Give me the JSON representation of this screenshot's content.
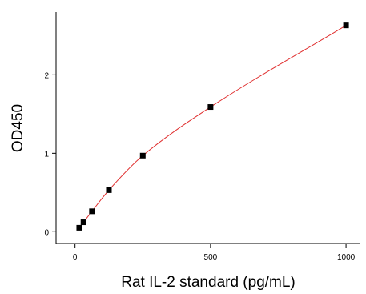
{
  "chart_data": {
    "type": "scatter",
    "title": "",
    "xlabel": "Rat IL-2 standard (pg/mL)",
    "ylabel": "OD450",
    "xlim": [
      -70,
      1050
    ],
    "ylim": [
      -0.15,
      2.8
    ],
    "xticks": [
      0,
      500,
      1000
    ],
    "yticks": [
      0,
      1,
      2
    ],
    "grid": false,
    "legend": "none",
    "colors": {
      "points": "#000000",
      "fit_line": "#e03030",
      "axis": "#000000"
    },
    "series": [
      {
        "x": [
          15.6,
          31.2,
          62.5,
          125,
          250,
          500,
          1000
        ],
        "y": [
          0.05,
          0.12,
          0.26,
          0.53,
          0.97,
          1.59,
          2.63
        ]
      }
    ],
    "fit": {
      "type": "curve",
      "x_start": 15.6,
      "x_end": 1000
    }
  }
}
